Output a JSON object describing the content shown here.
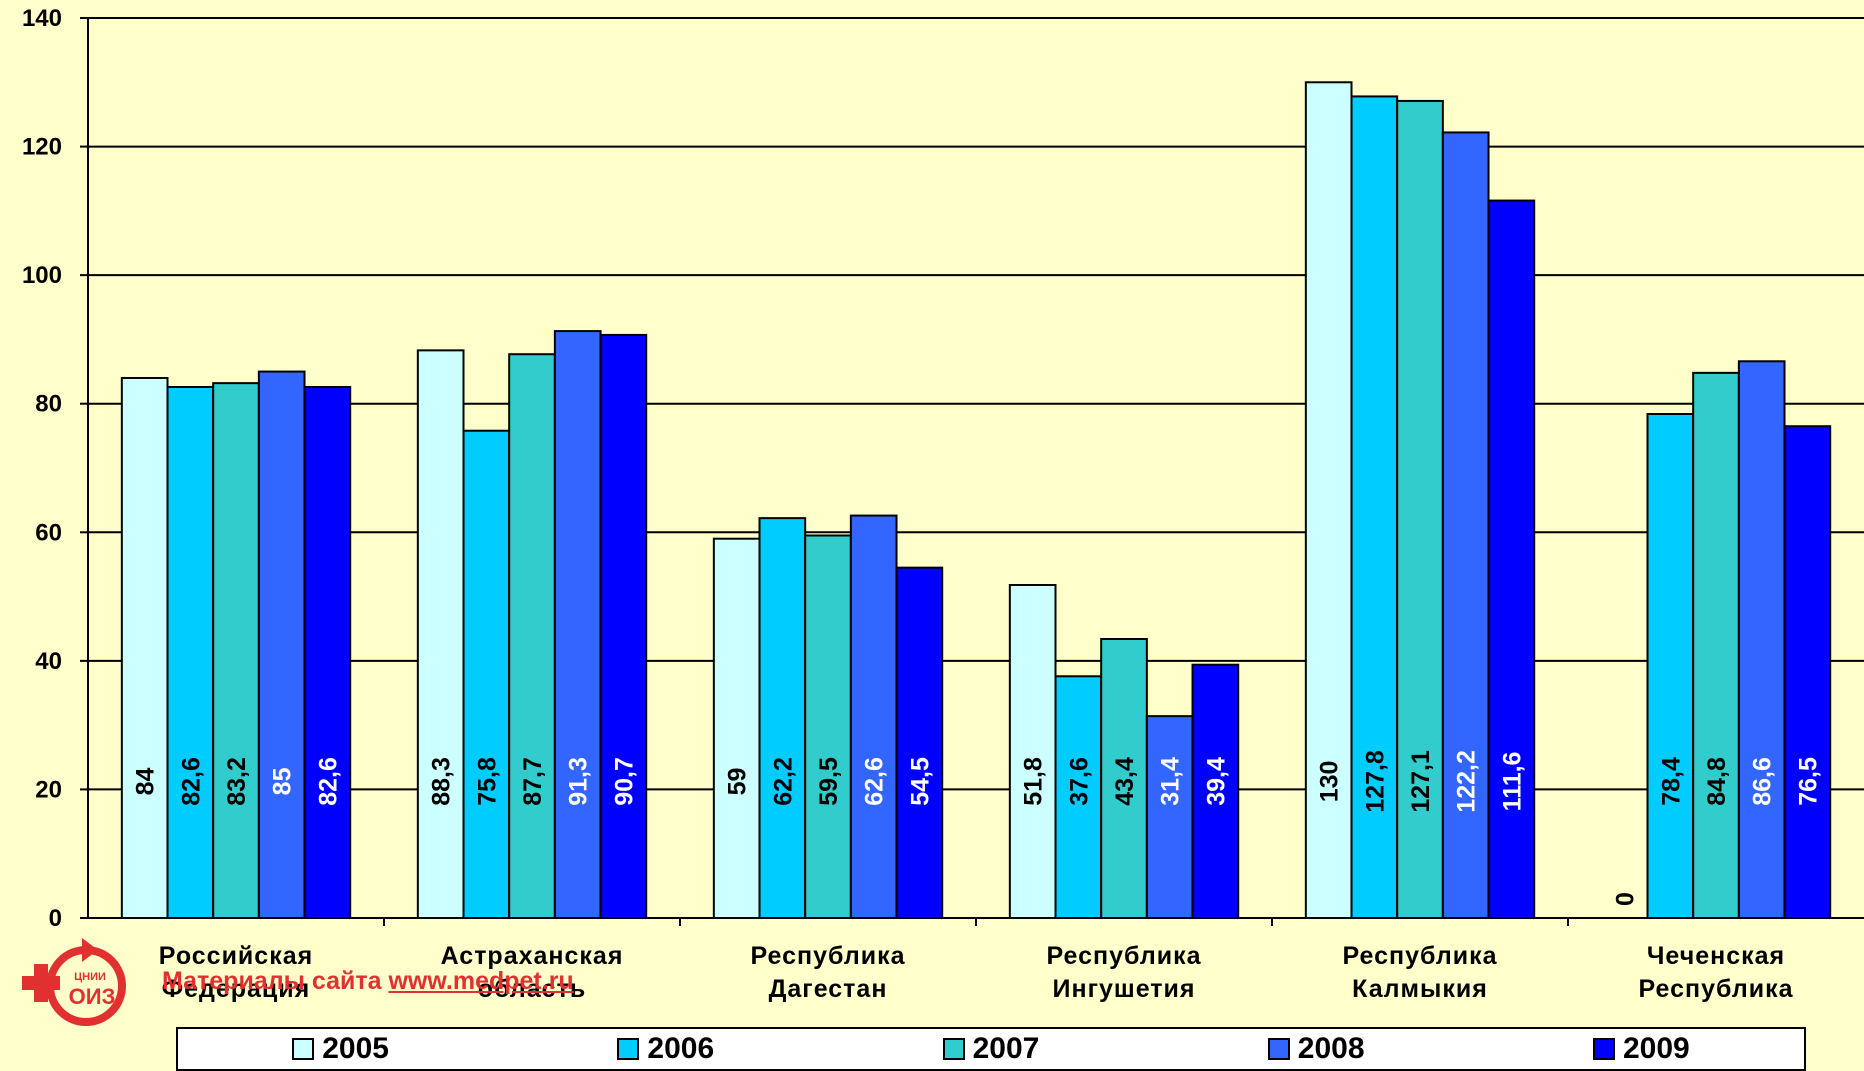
{
  "chart_data": {
    "type": "bar",
    "categories": [
      [
        "Российская",
        "Федерация"
      ],
      [
        "Астраханская",
        "область"
      ],
      [
        "Республика",
        "Дагестан"
      ],
      [
        "Республика",
        "Ингушетия"
      ],
      [
        "Республика",
        "Калмыкия"
      ],
      [
        "Чеченская",
        "Республика"
      ]
    ],
    "series": [
      {
        "name": "2005",
        "color": "#ccffff",
        "labelColor": "#000000",
        "values": [
          84,
          88.3,
          59,
          51.8,
          130,
          0
        ],
        "labels": [
          "84",
          "88,3",
          "59",
          "51,8",
          "130",
          "0"
        ]
      },
      {
        "name": "2006",
        "color": "#00ccff",
        "labelColor": "#000000",
        "values": [
          82.6,
          75.8,
          62.2,
          37.6,
          127.8,
          78.4
        ],
        "labels": [
          "82,6",
          "75,8",
          "62,2",
          "37,6",
          "127,8",
          "78,4"
        ]
      },
      {
        "name": "2007",
        "color": "#33cccc",
        "labelColor": "#000000",
        "values": [
          83.2,
          87.7,
          59.5,
          43.4,
          127.1,
          84.8
        ],
        "labels": [
          "83,2",
          "87,7",
          "59,5",
          "43,4",
          "127,1",
          "84,8"
        ]
      },
      {
        "name": "2008",
        "color": "#3366ff",
        "labelColor": "#ffffff",
        "values": [
          85,
          91.3,
          62.6,
          31.4,
          122.2,
          86.6
        ],
        "labels": [
          "85",
          "91,3",
          "62,6",
          "31,4",
          "122,2",
          "86,6"
        ]
      },
      {
        "name": "2009",
        "color": "#0000ff",
        "labelColor": "#ffffff",
        "values": [
          82.6,
          90.7,
          54.5,
          39.4,
          111.6,
          76.5
        ],
        "labels": [
          "82,6",
          "90,7",
          "54,5",
          "39,4",
          "111,6",
          "76,5"
        ]
      }
    ],
    "yticks": [
      "0",
      "20",
      "40",
      "60",
      "80",
      "100",
      "120",
      "140"
    ],
    "ylim": [
      0,
      140
    ],
    "grid": true,
    "legend": "bottom",
    "background": "#ffffcc"
  },
  "watermark": {
    "prefix": "Материалы сайта ",
    "url": "www.medpet.ru"
  },
  "logo": {
    "text_top": "ЦНИИ",
    "text_main": "ОИЗ"
  }
}
